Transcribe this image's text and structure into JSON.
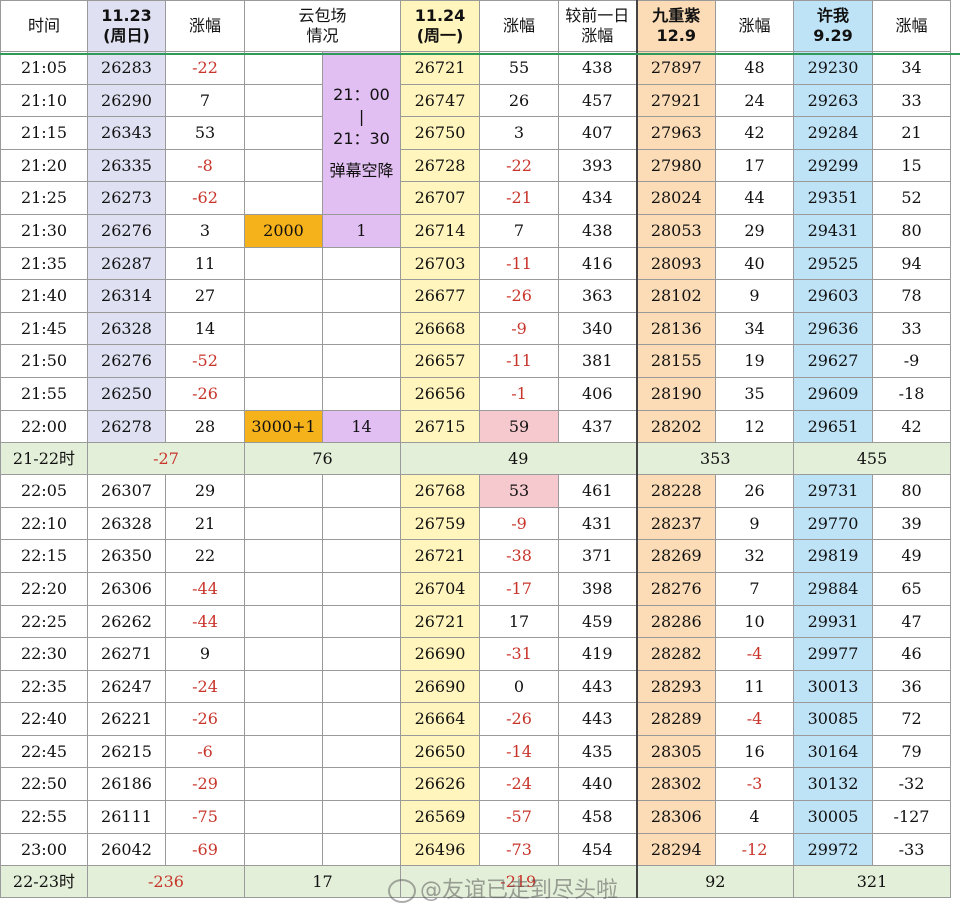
{
  "headers": {
    "time": "时间",
    "d1123_a": "11.23",
    "d1123_b": "(周日)",
    "chg1": "涨幅",
    "cloud_a": "云包场",
    "cloud_b": "情况",
    "d1124_a": "11.24",
    "d1124_b": "(周一)",
    "chg2": "涨幅",
    "prev_a": "较前一日",
    "prev_b": "涨幅",
    "jcz_a": "九重紫",
    "jcz_b": "12.9",
    "chg3": "涨幅",
    "xw_a": "许我",
    "xw_b": "9.29",
    "chg4": "涨幅"
  },
  "note": {
    "time_from": "21：00",
    "bar": "|",
    "time_to": "21：30",
    "label": "弹幕空降"
  },
  "rows1": [
    {
      "t": "21:05",
      "a": "26283",
      "ac": "-22",
      "b": "26721",
      "bc": "55",
      "p": "438",
      "c": "27897",
      "cc": "48",
      "d": "29230",
      "dc": "34",
      "cloud": "",
      "cloud2": ""
    },
    {
      "t": "21:10",
      "a": "26290",
      "ac": "7",
      "b": "26747",
      "bc": "26",
      "p": "457",
      "c": "27921",
      "cc": "24",
      "d": "29263",
      "dc": "33",
      "cloud": "",
      "cloud2": ""
    },
    {
      "t": "21:15",
      "a": "26343",
      "ac": "53",
      "b": "26750",
      "bc": "3",
      "p": "407",
      "c": "27963",
      "cc": "42",
      "d": "29284",
      "dc": "21",
      "cloud": "",
      "cloud2": ""
    },
    {
      "t": "21:20",
      "a": "26335",
      "ac": "-8",
      "b": "26728",
      "bc": "-22",
      "p": "393",
      "c": "27980",
      "cc": "17",
      "d": "29299",
      "dc": "15",
      "cloud": "",
      "cloud2": ""
    },
    {
      "t": "21:25",
      "a": "26273",
      "ac": "-62",
      "b": "26707",
      "bc": "-21",
      "p": "434",
      "c": "28024",
      "cc": "44",
      "d": "29351",
      "dc": "52",
      "cloud": "",
      "cloud2": ""
    },
    {
      "t": "21:30",
      "a": "26276",
      "ac": "3",
      "b": "26714",
      "bc": "7",
      "p": "438",
      "c": "28053",
      "cc": "29",
      "d": "29431",
      "dc": "80",
      "cloud": "2000",
      "cloud2": "1"
    },
    {
      "t": "21:35",
      "a": "26287",
      "ac": "11",
      "b": "26703",
      "bc": "-11",
      "p": "416",
      "c": "28093",
      "cc": "40",
      "d": "29525",
      "dc": "94",
      "cloud": "",
      "cloud2": ""
    },
    {
      "t": "21:40",
      "a": "26314",
      "ac": "27",
      "b": "26677",
      "bc": "-26",
      "p": "363",
      "c": "28102",
      "cc": "9",
      "d": "29603",
      "dc": "78",
      "cloud": "",
      "cloud2": ""
    },
    {
      "t": "21:45",
      "a": "26328",
      "ac": "14",
      "b": "26668",
      "bc": "-9",
      "p": "340",
      "c": "28136",
      "cc": "34",
      "d": "29636",
      "dc": "33",
      "cloud": "",
      "cloud2": ""
    },
    {
      "t": "21:50",
      "a": "26276",
      "ac": "-52",
      "b": "26657",
      "bc": "-11",
      "p": "381",
      "c": "28155",
      "cc": "19",
      "d": "29627",
      "dc": "-9",
      "cloud": "",
      "cloud2": ""
    },
    {
      "t": "21:55",
      "a": "26250",
      "ac": "-26",
      "b": "26656",
      "bc": "-1",
      "p": "406",
      "c": "28190",
      "cc": "35",
      "d": "29609",
      "dc": "-18",
      "cloud": "",
      "cloud2": ""
    },
    {
      "t": "22:00",
      "a": "26278",
      "ac": "28",
      "b": "26715",
      "bc": "59",
      "p": "437",
      "c": "28202",
      "cc": "12",
      "d": "29651",
      "dc": "42",
      "cloud": "3000+1",
      "cloud2": "14"
    }
  ],
  "sum1": {
    "label": "21-22时",
    "a": "-27",
    "cloud": "76",
    "b": "49",
    "c": "353",
    "d": "455"
  },
  "rows2": [
    {
      "t": "22:05",
      "a": "26307",
      "ac": "29",
      "b": "26768",
      "bc": "53",
      "p": "461",
      "c": "28228",
      "cc": "26",
      "d": "29731",
      "dc": "80"
    },
    {
      "t": "22:10",
      "a": "26328",
      "ac": "21",
      "b": "26759",
      "bc": "-9",
      "p": "431",
      "c": "28237",
      "cc": "9",
      "d": "29770",
      "dc": "39"
    },
    {
      "t": "22:15",
      "a": "26350",
      "ac": "22",
      "b": "26721",
      "bc": "-38",
      "p": "371",
      "c": "28269",
      "cc": "32",
      "d": "29819",
      "dc": "49"
    },
    {
      "t": "22:20",
      "a": "26306",
      "ac": "-44",
      "b": "26704",
      "bc": "-17",
      "p": "398",
      "c": "28276",
      "cc": "7",
      "d": "29884",
      "dc": "65"
    },
    {
      "t": "22:25",
      "a": "26262",
      "ac": "-44",
      "b": "26721",
      "bc": "17",
      "p": "459",
      "c": "28286",
      "cc": "10",
      "d": "29931",
      "dc": "47"
    },
    {
      "t": "22:30",
      "a": "26271",
      "ac": "9",
      "b": "26690",
      "bc": "-31",
      "p": "419",
      "c": "28282",
      "cc": "-4",
      "d": "29977",
      "dc": "46"
    },
    {
      "t": "22:35",
      "a": "26247",
      "ac": "-24",
      "b": "26690",
      "bc": "0",
      "p": "443",
      "c": "28293",
      "cc": "11",
      "d": "30013",
      "dc": "36"
    },
    {
      "t": "22:40",
      "a": "26221",
      "ac": "-26",
      "b": "26664",
      "bc": "-26",
      "p": "443",
      "c": "28289",
      "cc": "-4",
      "d": "30085",
      "dc": "72"
    },
    {
      "t": "22:45",
      "a": "26215",
      "ac": "-6",
      "b": "26650",
      "bc": "-14",
      "p": "435",
      "c": "28305",
      "cc": "16",
      "d": "30164",
      "dc": "79"
    },
    {
      "t": "22:50",
      "a": "26186",
      "ac": "-29",
      "b": "26626",
      "bc": "-24",
      "p": "440",
      "c": "28302",
      "cc": "-3",
      "d": "30132",
      "dc": "-32"
    },
    {
      "t": "22:55",
      "a": "26111",
      "ac": "-75",
      "b": "26569",
      "bc": "-57",
      "p": "458",
      "c": "28306",
      "cc": "4",
      "d": "30005",
      "dc": "-127"
    },
    {
      "t": "23:00",
      "a": "26042",
      "ac": "-69",
      "b": "26496",
      "bc": "-73",
      "p": "454",
      "c": "28294",
      "cc": "-12",
      "d": "29972",
      "dc": "-33"
    }
  ],
  "sum2": {
    "label": "22-23时",
    "a": "-236",
    "cloud": "17",
    "b": "-219",
    "c": "92",
    "d": "321"
  },
  "watermark": "@友谊已走到尽头啦",
  "colors": {
    "neg_text": "#c8352b",
    "col_1123": "#dfe1f2",
    "col_1124": "#fff5bd",
    "col_jcz": "#fbdcb6",
    "col_xw": "#bfe3f6",
    "cloud_purple": "#e2bff2",
    "cloud_gold": "#f6b21a",
    "highlight_pink": "#f6c9cf",
    "summary_green": "#e3efd8"
  }
}
